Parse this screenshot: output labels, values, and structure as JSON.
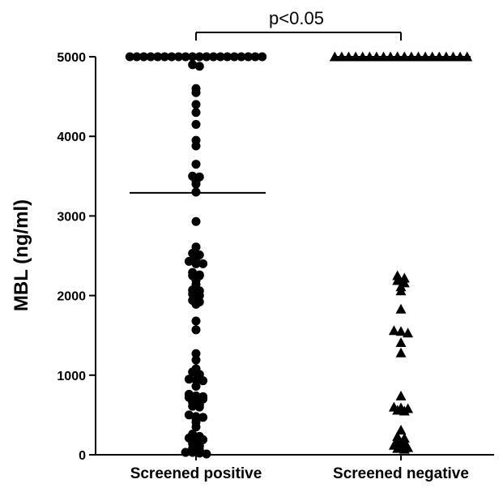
{
  "chart_data": {
    "type": "scatter",
    "subtype": "dot-plot",
    "ylabel": "MBL (ng/ml)",
    "xlabel": "",
    "ylim": [
      0,
      5000
    ],
    "yticks": [
      0,
      1000,
      2000,
      3000,
      4000,
      5000
    ],
    "categories": [
      "Screened positive",
      "Screened negative"
    ],
    "series": [
      {
        "category": "Screened positive",
        "marker": "circle",
        "mean_line": 3290,
        "values": [
          5000,
          5000,
          5000,
          5000,
          5000,
          5000,
          5000,
          5000,
          5000,
          5000,
          5000,
          5000,
          5000,
          5000,
          5000,
          5000,
          5000,
          5000,
          5000,
          5000,
          4900,
          4880,
          4600,
          4550,
          4400,
          4300,
          4150,
          3950,
          3880,
          3650,
          3500,
          3490,
          3440,
          3400,
          3300,
          2930,
          2610,
          2530,
          2510,
          2470,
          2430,
          2400,
          2400,
          2290,
          2260,
          2250,
          2250,
          2190,
          2140,
          2070,
          2060,
          2020,
          2000,
          1940,
          1920,
          1890,
          1680,
          1570,
          1270,
          1190,
          1080,
          1040,
          1010,
          950,
          940,
          930,
          860,
          760,
          740,
          730,
          720,
          710,
          700,
          660,
          630,
          610,
          600,
          500,
          480,
          470,
          450,
          410,
          350,
          260,
          230,
          210,
          200,
          190,
          140,
          110,
          80,
          60,
          30,
          30,
          20,
          10
        ]
      },
      {
        "category": "Screened negative",
        "marker": "triangle",
        "values": [
          5000,
          5000,
          5000,
          5000,
          5000,
          5000,
          5000,
          5000,
          5000,
          5000,
          5000,
          5000,
          5000,
          5000,
          5000,
          5000,
          5000,
          5000,
          5000,
          5000,
          5000,
          5000,
          2250,
          2220,
          2190,
          2160,
          2110,
          2060,
          1830,
          1560,
          1550,
          1530,
          1410,
          1280,
          740,
          600,
          590,
          580,
          560,
          550,
          310,
          230,
          210,
          170,
          160,
          120,
          100,
          90,
          80,
          70
        ]
      }
    ],
    "annotation": {
      "text": "p<0.05",
      "bracket": [
        "Screened positive",
        "Screened negative"
      ]
    }
  }
}
